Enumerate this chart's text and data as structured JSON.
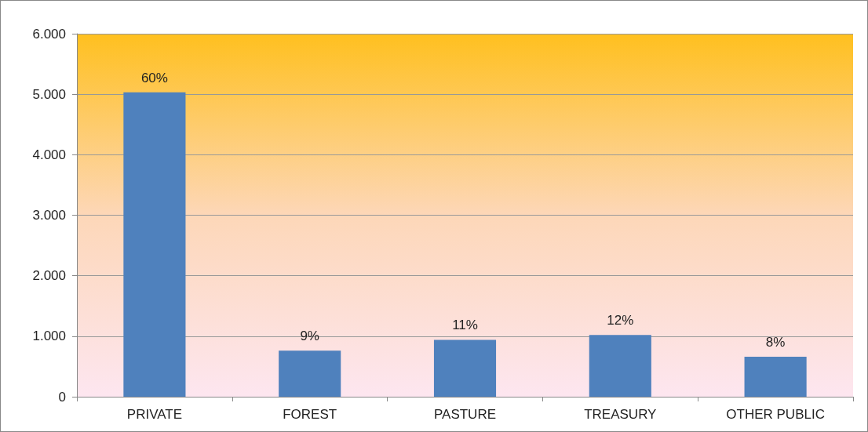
{
  "chart_data": {
    "type": "bar",
    "categories": [
      "PRIVATE",
      "FOREST",
      "PASTURE",
      "TREASURY",
      "OTHER PUBLIC"
    ],
    "values": [
      5030,
      760,
      940,
      1020,
      660
    ],
    "annotations": [
      {
        "text": "60%",
        "x": "PRIVATE",
        "y": 5030
      },
      {
        "text": "9%",
        "x": "FOREST",
        "y": 760
      },
      {
        "text": "11%",
        "x": "PASTURE",
        "y": 940
      },
      {
        "text": "12%",
        "x": "TREASURY",
        "y": 1020
      },
      {
        "text": "8%",
        "x": "OTHER PUBLIC",
        "y": 660
      }
    ],
    "color": "#4f81bd",
    "ylim": [
      0,
      6000
    ],
    "yticks": [
      {
        "value": 0,
        "label": "0"
      },
      {
        "value": 1000,
        "label": "1.000"
      },
      {
        "value": 2000,
        "label": "2.000"
      },
      {
        "value": 3000,
        "label": "3.000"
      },
      {
        "value": 4000,
        "label": "4.000"
      },
      {
        "value": 5000,
        "label": "5.000"
      },
      {
        "value": 6000,
        "label": "6.000"
      }
    ],
    "grid": "y"
  }
}
